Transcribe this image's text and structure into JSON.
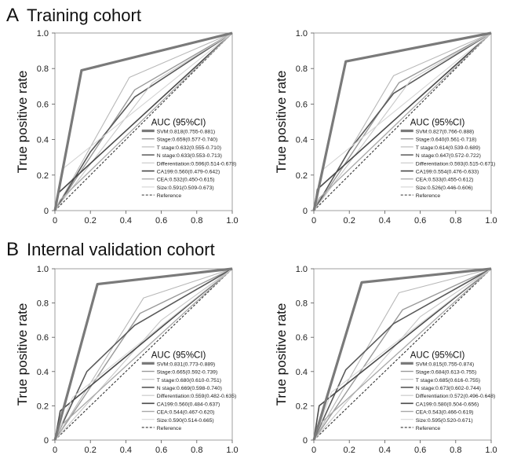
{
  "sections": [
    {
      "letter": "A",
      "title": "Training cohort"
    },
    {
      "letter": "B",
      "title": "Internal validation cohort"
    }
  ],
  "colors": {
    "SVM": "#7a7a7a",
    "Stage": "#9a9a9a",
    "T stage": "#b8b8b8",
    "N stage": "#5a5a5a",
    "Differentiation": "#c8c8c8",
    "CA199": "#4a4a4a",
    "CEA": "#a8a8a8",
    "Size": "#d4d4d4",
    "Reference": "#333333"
  },
  "chart_data": [
    {
      "type": "line",
      "ylabel": "True positive rate",
      "xlabel": "",
      "xlim": [
        0,
        1
      ],
      "ylim": [
        0,
        1
      ],
      "xticks": [
        "0",
        "0.2",
        "0.4",
        "0.6",
        "0.8",
        "1.0"
      ],
      "yticks": [
        "0",
        "0.2",
        "0.4",
        "0.6",
        "0.8",
        "1.0"
      ],
      "legend_title": "AUC (95%CI)",
      "legend_position": "bottom-right",
      "series": [
        {
          "name": "SVM",
          "label": "SVM:0.818(0.755-0.881)",
          "x": [
            0,
            0.15,
            1
          ],
          "y": [
            0,
            0.79,
            1
          ]
        },
        {
          "name": "Stage",
          "label": "Stage:0.659(0.577-0.740)",
          "x": [
            0,
            0.45,
            1
          ],
          "y": [
            0,
            0.68,
            1
          ]
        },
        {
          "name": "T stage",
          "label": "T stage:0.632(0.555-0.710)",
          "x": [
            0,
            0.42,
            1
          ],
          "y": [
            0,
            0.75,
            1
          ]
        },
        {
          "name": "N stage",
          "label": "N stage:0.633(0.553-0.713)",
          "x": [
            0,
            0.2,
            0.45,
            1
          ],
          "y": [
            0,
            0.33,
            0.64,
            1
          ]
        },
        {
          "name": "Differentiation",
          "label": "Differentiation:0.596(0.514-0.678)",
          "x": [
            0,
            0.55,
            1
          ],
          "y": [
            0,
            0.72,
            1
          ]
        },
        {
          "name": "CA199",
          "label": "CA199:0.560(0.479-0.642)",
          "x": [
            0,
            0.02,
            1
          ],
          "y": [
            0,
            0.1,
            1
          ]
        },
        {
          "name": "CEA",
          "label": "CEA:0.532(0.450-0.615)",
          "x": [
            0,
            0.03,
            1
          ],
          "y": [
            0,
            0.06,
            1
          ]
        },
        {
          "name": "Size",
          "label": "Size:0.591(0.509-0.673)",
          "x": [
            0,
            0.05,
            1
          ],
          "y": [
            0,
            0.24,
            1
          ]
        },
        {
          "name": "Reference",
          "label": "Reference",
          "x": [
            0,
            1
          ],
          "y": [
            0,
            1
          ]
        }
      ]
    },
    {
      "type": "line",
      "ylabel": "True positive rate",
      "xlabel": "",
      "xlim": [
        0,
        1
      ],
      "ylim": [
        0,
        1
      ],
      "xticks": [
        "0",
        "0.2",
        "0.4",
        "0.6",
        "0.8",
        "1.0"
      ],
      "yticks": [
        "0",
        "0.2",
        "0.4",
        "0.6",
        "0.8",
        "1.0"
      ],
      "legend_title": "AUC (95%CI)",
      "legend_position": "bottom-right",
      "series": [
        {
          "name": "SVM",
          "label": "SVM:0.827(0.766-0.888)",
          "x": [
            0,
            0.18,
            1
          ],
          "y": [
            0,
            0.84,
            1
          ]
        },
        {
          "name": "Stage",
          "label": "Stage:0.640(0.561-0.718)",
          "x": [
            0,
            0.48,
            1
          ],
          "y": [
            0,
            0.72,
            1
          ]
        },
        {
          "name": "T stage",
          "label": "T stage:0.614(0.539-0.689)",
          "x": [
            0,
            0.45,
            1
          ],
          "y": [
            0,
            0.76,
            1
          ]
        },
        {
          "name": "N stage",
          "label": "N stage:0.647(0.572-0.722)",
          "x": [
            0,
            0.2,
            0.45,
            1
          ],
          "y": [
            0,
            0.34,
            0.66,
            1
          ]
        },
        {
          "name": "Differentiation",
          "label": "Differentiation:0.593(0.515-0.671)",
          "x": [
            0,
            0.55,
            1
          ],
          "y": [
            0,
            0.74,
            1
          ]
        },
        {
          "name": "CA199",
          "label": "CA199:0.554(0.476-0.633)",
          "x": [
            0,
            0.02,
            1
          ],
          "y": [
            0,
            0.12,
            1
          ]
        },
        {
          "name": "CEA",
          "label": "CEA:0.533(0.455-0.612)",
          "x": [
            0,
            0.03,
            1
          ],
          "y": [
            0,
            0.07,
            1
          ]
        },
        {
          "name": "Size",
          "label": "Size:0.526(0.446-0.606)",
          "x": [
            0,
            0.05,
            1
          ],
          "y": [
            0,
            0.23,
            1
          ]
        },
        {
          "name": "Reference",
          "label": "Reference",
          "x": [
            0,
            1
          ],
          "y": [
            0,
            1
          ]
        }
      ]
    },
    {
      "type": "line",
      "ylabel": "True positive rate",
      "xlabel": "",
      "xlim": [
        0,
        1
      ],
      "ylim": [
        0,
        1
      ],
      "xticks": [
        "0",
        "0.2",
        "0.4",
        "0.6",
        "0.8",
        "1.0"
      ],
      "yticks": [
        "0",
        "0.2",
        "0.4",
        "0.6",
        "0.8",
        "1.0"
      ],
      "legend_title": "AUC (95%CI)",
      "legend_position": "bottom-right",
      "series": [
        {
          "name": "SVM",
          "label": "SVM:0.831(0.773-0.889)",
          "x": [
            0,
            0.24,
            1
          ],
          "y": [
            0,
            0.91,
            1
          ]
        },
        {
          "name": "Stage",
          "label": "Stage:0.665(0.592-0.739)",
          "x": [
            0,
            0.48,
            1
          ],
          "y": [
            0,
            0.74,
            1
          ]
        },
        {
          "name": "T stage",
          "label": "T stage:0.680(0.610-0.751)",
          "x": [
            0,
            0.5,
            1
          ],
          "y": [
            0,
            0.83,
            1
          ]
        },
        {
          "name": "N stage",
          "label": "N stage:0.669(0.598-0.740)",
          "x": [
            0,
            0.18,
            0.45,
            1
          ],
          "y": [
            0,
            0.4,
            0.67,
            1
          ]
        },
        {
          "name": "Differentiation",
          "label": "Differentiation:0.559(0.482-0.635)",
          "x": [
            0,
            0.6,
            1
          ],
          "y": [
            0,
            0.7,
            1
          ]
        },
        {
          "name": "CA199",
          "label": "CA199:0.560(0.484-0.637)",
          "x": [
            0,
            0.03,
            1
          ],
          "y": [
            0,
            0.17,
            1
          ]
        },
        {
          "name": "CEA",
          "label": "CEA:0.544(0.467-0.620)",
          "x": [
            0,
            0.04,
            1
          ],
          "y": [
            0,
            0.09,
            1
          ]
        },
        {
          "name": "Size",
          "label": "Size:0.590(0.514-0.665)",
          "x": [
            0,
            0.1,
            1
          ],
          "y": [
            0,
            0.25,
            1
          ]
        },
        {
          "name": "Reference",
          "label": "Reference",
          "x": [
            0,
            1
          ],
          "y": [
            0,
            1
          ]
        }
      ]
    },
    {
      "type": "line",
      "ylabel": "True positive rate",
      "xlabel": "",
      "xlim": [
        0,
        1
      ],
      "ylim": [
        0,
        1
      ],
      "xticks": [
        "0",
        "0.2",
        "0.4",
        "0.6",
        "0.8",
        "1.0"
      ],
      "yticks": [
        "0",
        "0.2",
        "0.4",
        "0.6",
        "0.8",
        "1.0"
      ],
      "legend_title": "AUC (95%CI)",
      "legend_position": "bottom-right",
      "series": [
        {
          "name": "SVM",
          "label": "SVM:0.815(0.755-0.874)",
          "x": [
            0,
            0.27,
            1
          ],
          "y": [
            0,
            0.92,
            1
          ]
        },
        {
          "name": "Stage",
          "label": "Stage:0.684(0.613-0.755)",
          "x": [
            0,
            0.5,
            1
          ],
          "y": [
            0,
            0.76,
            1
          ]
        },
        {
          "name": "T stage",
          "label": "T stage:0.685(0.616-0.755)",
          "x": [
            0,
            0.48,
            1
          ],
          "y": [
            0,
            0.86,
            1
          ]
        },
        {
          "name": "N stage",
          "label": "N stage:0.673(0.602-0.744)",
          "x": [
            0,
            0.18,
            0.45,
            1
          ],
          "y": [
            0,
            0.41,
            0.68,
            1
          ]
        },
        {
          "name": "Differentiation",
          "label": "Differentiation:0.572(0.496-0.648)",
          "x": [
            0,
            0.6,
            1
          ],
          "y": [
            0,
            0.72,
            1
          ]
        },
        {
          "name": "CA199",
          "label": "CA199:0.580(0.504-0.656)",
          "x": [
            0,
            0.03,
            1
          ],
          "y": [
            0,
            0.2,
            1
          ]
        },
        {
          "name": "CEA",
          "label": "CEA:0.543(0.466-0.619)",
          "x": [
            0,
            0.04,
            1
          ],
          "y": [
            0,
            0.1,
            1
          ]
        },
        {
          "name": "Size",
          "label": "Size:0.595(0.520-0.671)",
          "x": [
            0,
            0.1,
            1
          ],
          "y": [
            0,
            0.28,
            1
          ]
        },
        {
          "name": "Reference",
          "label": "Reference",
          "x": [
            0,
            1
          ],
          "y": [
            0,
            1
          ]
        }
      ]
    }
  ]
}
